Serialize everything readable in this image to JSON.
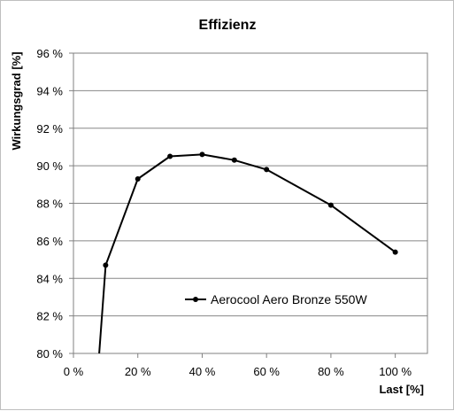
{
  "chart_data": {
    "type": "line",
    "title": "Effizienz",
    "xlabel": "Last [%]",
    "ylabel": "Wirkungsgrad [%]",
    "xlim": [
      0,
      110
    ],
    "ylim": [
      80,
      96
    ],
    "x_ticks": [
      0,
      20,
      40,
      60,
      80,
      100
    ],
    "x_tick_labels": [
      "0 %",
      "20 %",
      "40 %",
      "60 %",
      "80 %",
      "100 %"
    ],
    "y_ticks": [
      80,
      82,
      84,
      86,
      88,
      90,
      92,
      94,
      96
    ],
    "y_tick_labels": [
      "80 %",
      "82 %",
      "84 %",
      "86 %",
      "88 %",
      "90 %",
      "92 %",
      "94 %",
      "96 %"
    ],
    "grid": "horizontal",
    "legend_position": "lower-center",
    "series": [
      {
        "name": "Aerocool Aero Bronze 550W",
        "color": "#000000",
        "points": [
          {
            "x": 8,
            "y": 80,
            "marker": false
          },
          {
            "x": 10,
            "y": 84.7,
            "marker": true
          },
          {
            "x": 20,
            "y": 89.3,
            "marker": true
          },
          {
            "x": 30,
            "y": 90.5,
            "marker": true
          },
          {
            "x": 40,
            "y": 90.6,
            "marker": true
          },
          {
            "x": 50,
            "y": 90.3,
            "marker": true
          },
          {
            "x": 60,
            "y": 89.8,
            "marker": true
          },
          {
            "x": 80,
            "y": 87.9,
            "marker": true
          },
          {
            "x": 100,
            "y": 85.4,
            "marker": true
          }
        ]
      }
    ]
  }
}
